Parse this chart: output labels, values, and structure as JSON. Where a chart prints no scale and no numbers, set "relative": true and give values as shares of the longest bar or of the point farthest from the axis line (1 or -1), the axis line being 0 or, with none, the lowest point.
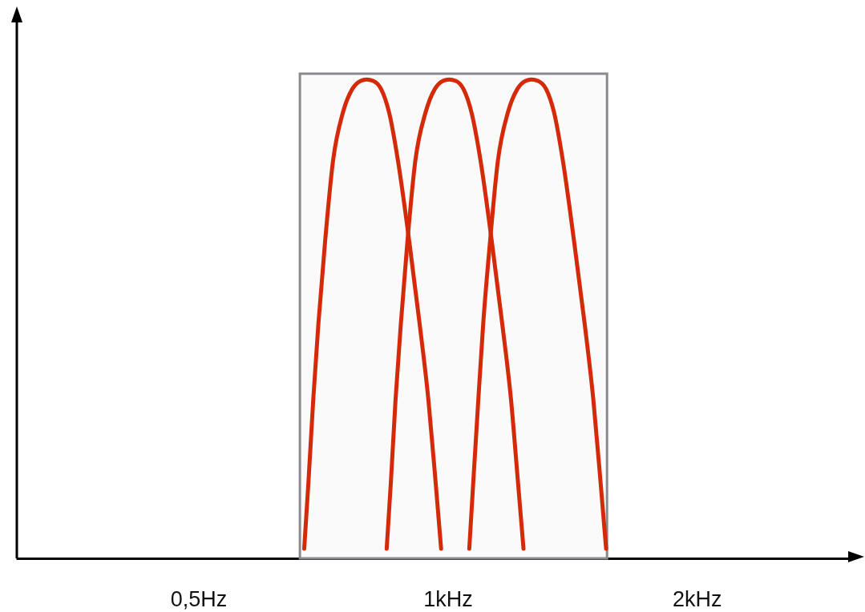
{
  "chart_data": {
    "type": "line",
    "relative": true,
    "log": "x",
    "xlim": [
      0.301,
      3.095
    ],
    "xticks": [
      {
        "value": 0.5,
        "label": "0,5Hz"
      },
      {
        "value": 1,
        "label": "1kHz"
      },
      {
        "value": 2,
        "label": "2kHz"
      }
    ],
    "bands": [
      {
        "axis": "x",
        "from": 0.663,
        "to": 1.558,
        "color": "#8a8a8e"
      }
    ],
    "series": [
      {
        "color": "#d42a0a",
        "x": [
          0.671,
          0.679,
          0.688,
          0.698,
          0.711,
          0.727,
          0.747,
          0.767,
          0.785,
          0.798,
          0.813,
          0.831,
          0.85,
          0.871,
          0.899,
          0.925,
          0.948,
          0.967,
          0.982
        ],
        "values": [
          0.02,
          0.16,
          0.33,
          0.49,
          0.66,
          0.83,
          0.93,
          0.98,
          0.997,
          1,
          0.997,
          0.98,
          0.93,
          0.83,
          0.66,
          0.49,
          0.33,
          0.16,
          0.02
        ]
      },
      {
        "color": "#d42a0a",
        "x": [
          0.844,
          0.854,
          0.865,
          0.878,
          0.894,
          0.914,
          0.94,
          0.965,
          0.987,
          1.004,
          1.023,
          1.045,
          1.069,
          1.096,
          1.131,
          1.164,
          1.193,
          1.216,
          1.235
        ],
        "values": [
          0.02,
          0.16,
          0.33,
          0.49,
          0.66,
          0.83,
          0.93,
          0.98,
          0.997,
          1,
          0.997,
          0.98,
          0.93,
          0.83,
          0.66,
          0.49,
          0.33,
          0.16,
          0.02
        ]
      },
      {
        "color": "#d42a0a",
        "x": [
          1.062,
          1.074,
          1.089,
          1.104,
          1.125,
          1.15,
          1.182,
          1.214,
          1.242,
          1.263,
          1.286,
          1.315,
          1.345,
          1.378,
          1.422,
          1.464,
          1.5,
          1.53,
          1.554
        ],
        "values": [
          0.02,
          0.16,
          0.33,
          0.49,
          0.66,
          0.83,
          0.93,
          0.98,
          0.997,
          1,
          0.997,
          0.98,
          0.93,
          0.83,
          0.66,
          0.49,
          0.33,
          0.16,
          0.02
        ]
      }
    ]
  }
}
